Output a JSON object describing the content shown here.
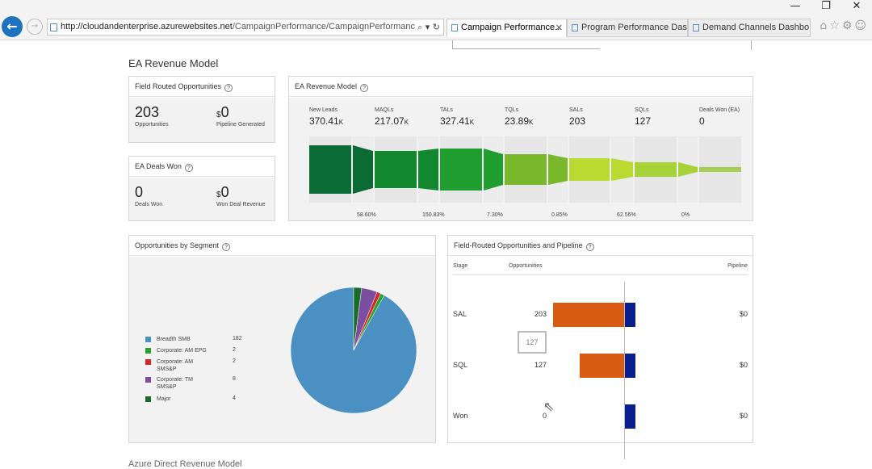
{
  "browser": {
    "url_host": "http://cloudandenterprise.azurewebsites.net",
    "url_path": "/CampaignPerformance/CampaignPerformance?vr",
    "tabs": [
      {
        "label": "Campaign Performance...",
        "active": true
      },
      {
        "label": "Program Performance Das...",
        "active": false
      },
      {
        "label": "Demand Channels Dashbo...",
        "active": false
      }
    ],
    "minimize": "—",
    "restore": "❐",
    "close": "✕"
  },
  "section_title": "EA Revenue Model",
  "field_routed": {
    "title": "Field Routed Opportunities",
    "opportunities_value": "203",
    "opportunities_label": "Opportunities",
    "pipeline_currency": "$",
    "pipeline_value": "0",
    "pipeline_label": "Pipeline Generated"
  },
  "deals_won": {
    "title": "EA Deals Won",
    "deals_value": "0",
    "deals_label": "Deals Won",
    "revenue_currency": "$",
    "revenue_value": "0",
    "revenue_label": "Won Deal Revenue"
  },
  "revenue_model": {
    "title": "EA Revenue Model",
    "stages": [
      {
        "name": "New Leads",
        "value": "370.41",
        "suffix": "K"
      },
      {
        "name": "MAQLs",
        "value": "217.07",
        "suffix": "K"
      },
      {
        "name": "TALs",
        "value": "327.41",
        "suffix": "K"
      },
      {
        "name": "TQLs",
        "value": "23.89",
        "suffix": "K"
      },
      {
        "name": "SALs",
        "value": "203",
        "suffix": ""
      },
      {
        "name": "SQLs",
        "value": "127",
        "suffix": ""
      },
      {
        "name": "Deals Won (EA)",
        "value": "0",
        "suffix": ""
      }
    ],
    "conversions": [
      "58.60%",
      "150.83%",
      "7.30%",
      "0.85%",
      "62.56%",
      "0%"
    ],
    "colors": [
      "#0b6b35",
      "#12882e",
      "#1f9e2f",
      "#78b82a",
      "#bcd932",
      "#a8d338",
      "#a6ce55"
    ]
  },
  "segments": {
    "title": "Opportunities by Segment",
    "items": [
      {
        "label": "Breadth SMB",
        "count": "182",
        "color": "#4a90c2",
        "value": 182
      },
      {
        "label": "Corporate: AM EPG",
        "count": "2",
        "color": "#2ca02c",
        "value": 2
      },
      {
        "label": "Corporate: AM SMS&P",
        "count": "2",
        "color": "#d62728",
        "value": 2
      },
      {
        "label": "Corporate: TM SMS&P",
        "count": "8",
        "color": "#7b4fa0",
        "value": 8
      },
      {
        "label": "Major",
        "count": "4",
        "color": "#1a6b2a",
        "value": 4
      }
    ]
  },
  "fro_pipeline": {
    "title": "Field-Routed Opportunities and Pipeline",
    "col_stage": "Stage",
    "col_opps": "Opportunities",
    "col_pipe": "Pipeline",
    "rows": [
      {
        "stage": "SAL",
        "opps": "203",
        "opps_value": 203,
        "pipeline": "$0"
      },
      {
        "stage": "SQL",
        "opps": "127",
        "opps_value": 127,
        "pipeline": "$0"
      },
      {
        "stage": "Won",
        "opps": "0",
        "opps_value": 0,
        "pipeline": "$0"
      }
    ],
    "tooltip": "127",
    "opp_color": "#d95a12",
    "pipe_color": "#0a1f8f"
  },
  "next_section": "Azure Direct Revenue Model"
}
